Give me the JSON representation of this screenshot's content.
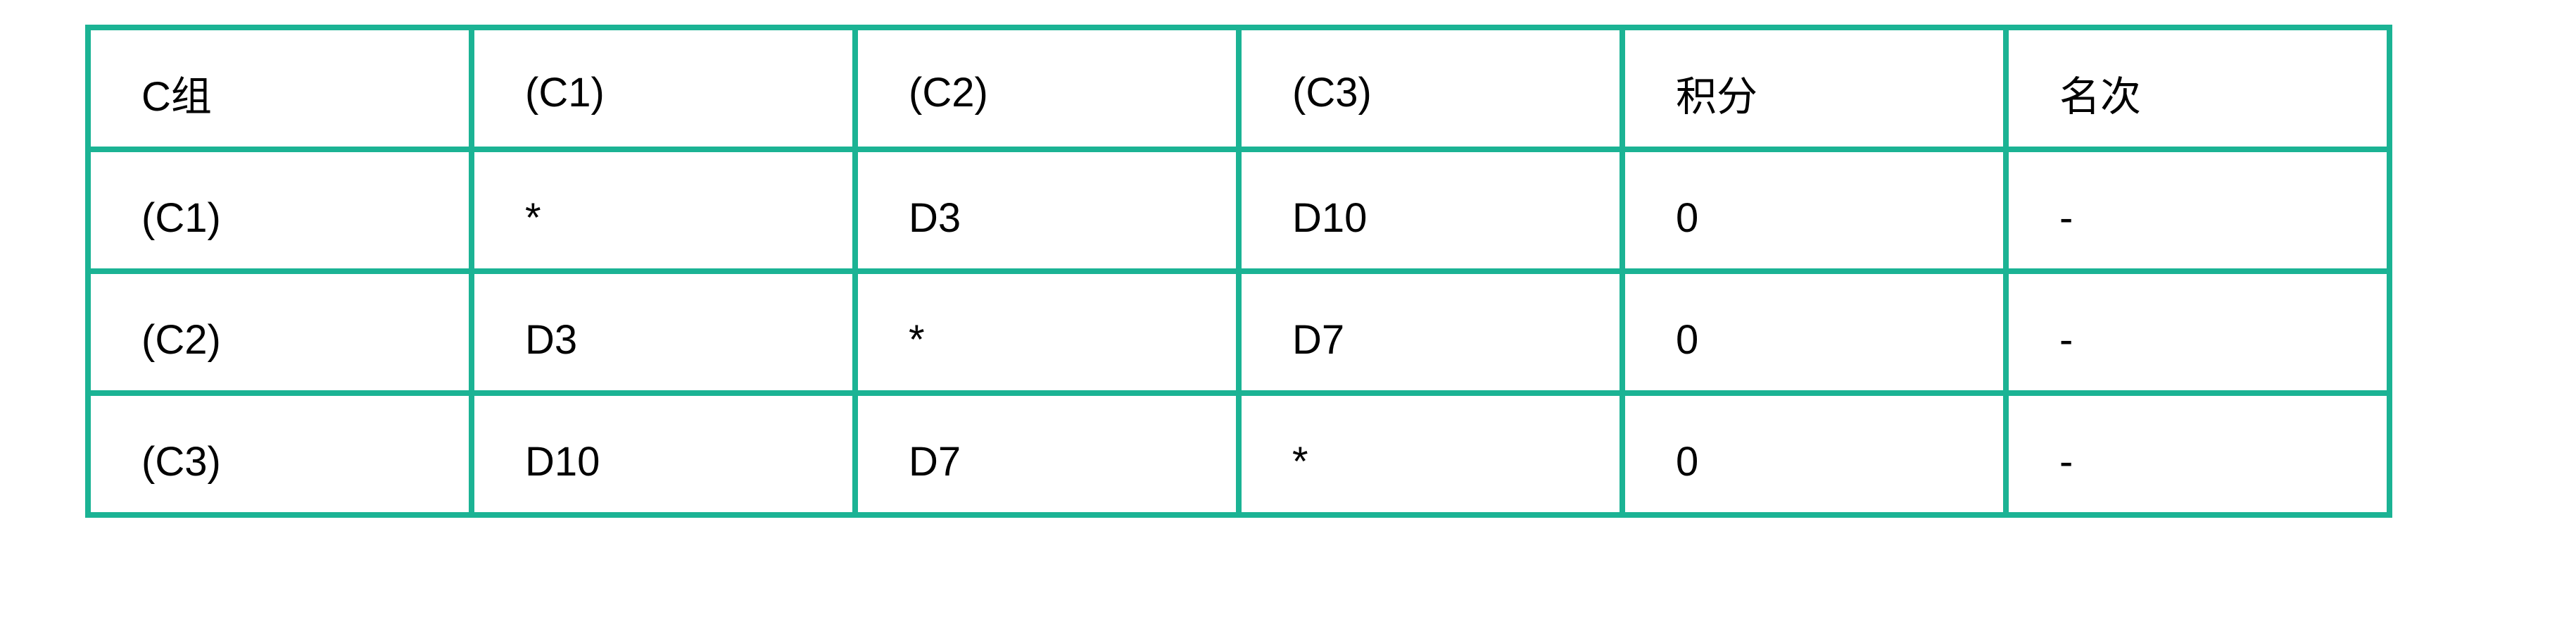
{
  "table": {
    "border_color": "#1bb394",
    "header": [
      "C组",
      "(C1)",
      "(C2)",
      "(C3)",
      "积分",
      "名次"
    ],
    "rows": [
      [
        "(C1)",
        "*",
        "D3",
        "D10",
        "0",
        "-"
      ],
      [
        "(C2)",
        "D3",
        "*",
        "D7",
        "0",
        "-"
      ],
      [
        "(C3)",
        "D10",
        "D7",
        "*",
        "0",
        "-"
      ]
    ]
  }
}
